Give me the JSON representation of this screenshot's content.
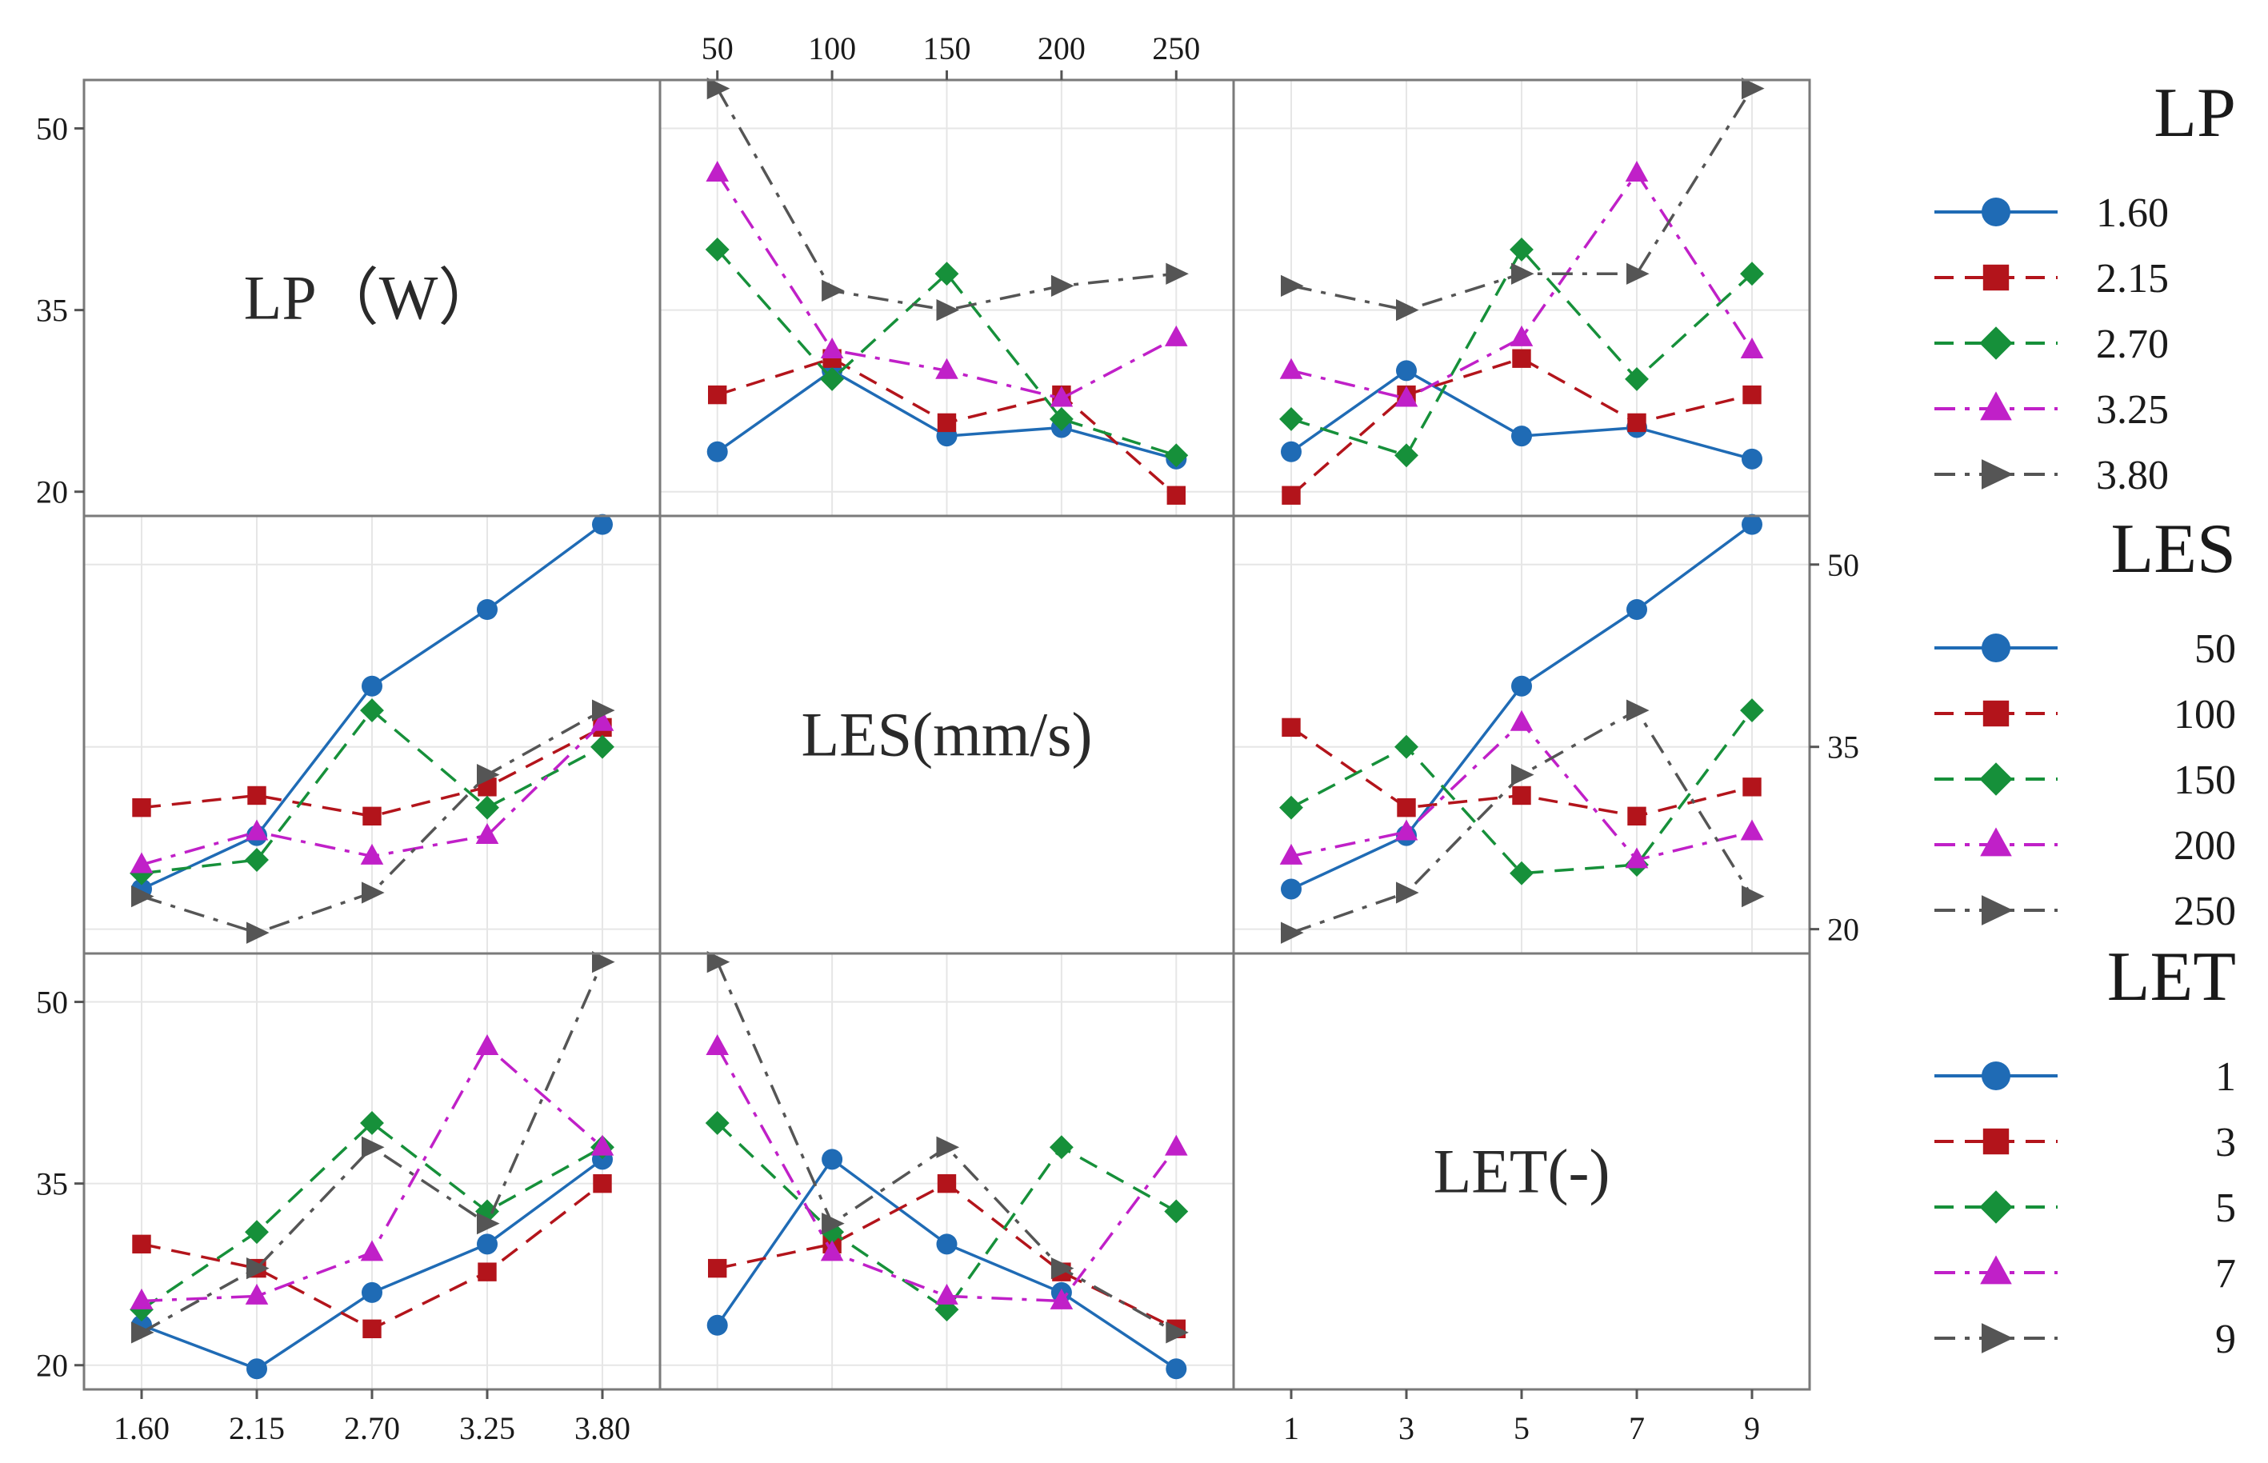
{
  "chart_data": {
    "type": "line",
    "title": "",
    "diagonal_labels": [
      "LP（W）",
      "LES(mm/s)",
      "LET(-)"
    ],
    "factors": {
      "LP": [
        "1.60",
        "2.15",
        "2.70",
        "3.25",
        "3.80"
      ],
      "LES": [
        "50",
        "100",
        "150",
        "200",
        "250"
      ],
      "LET": [
        "1",
        "3",
        "5",
        "7",
        "9"
      ]
    },
    "ylim": [
      18,
      54
    ],
    "yticks": [
      "20",
      "35",
      "50"
    ],
    "top_axis_ticks": [
      "50",
      "100",
      "150",
      "200",
      "250"
    ],
    "bottom_axis_ticks_left": [
      "1.60",
      "2.15",
      "2.70",
      "3.25",
      "3.80"
    ],
    "bottom_axis_ticks_right": [
      "1",
      "3",
      "5",
      "7",
      "9"
    ],
    "right_axis_ticks": [
      "20",
      "35",
      "50"
    ],
    "series_style": [
      {
        "color": "#1f6bb5",
        "marker": "circle",
        "dash": "solid"
      },
      {
        "color": "#b3141b",
        "marker": "square",
        "dash": "dashed"
      },
      {
        "color": "#16903a",
        "marker": "diamond",
        "dash": "dashed"
      },
      {
        "color": "#c020c8",
        "marker": "triangle",
        "dash": "dashdot"
      },
      {
        "color": "#555555",
        "marker": "arrow",
        "dash": "dashdot"
      }
    ],
    "panels": [
      {
        "id": "LP-by-LES",
        "x_factor": "LES",
        "trace_factor": "LP",
        "series": [
          {
            "name": "1.60",
            "values": [
              23.3,
              30.0,
              24.6,
              25.3,
              22.7
            ]
          },
          {
            "name": "2.15",
            "values": [
              28.0,
              31.0,
              25.7,
              28.0,
              19.7
            ]
          },
          {
            "name": "2.70",
            "values": [
              40.0,
              29.3,
              38.0,
              26.0,
              23.0
            ]
          },
          {
            "name": "3.25",
            "values": [
              46.3,
              31.7,
              30.0,
              27.7,
              32.7
            ]
          },
          {
            "name": "3.80",
            "values": [
              53.3,
              36.6,
              35.0,
              37.0,
              38.0
            ]
          }
        ]
      },
      {
        "id": "LP-by-LET",
        "x_factor": "LET",
        "trace_factor": "LP",
        "series": [
          {
            "name": "1.60",
            "values": [
              23.3,
              30.0,
              24.6,
              25.3,
              22.7
            ]
          },
          {
            "name": "2.15",
            "values": [
              19.7,
              28.0,
              31.0,
              25.7,
              28.0
            ]
          },
          {
            "name": "2.70",
            "values": [
              26.0,
              23.0,
              40.0,
              29.3,
              38.0
            ]
          },
          {
            "name": "3.25",
            "values": [
              30.0,
              27.7,
              32.7,
              46.3,
              31.7
            ]
          },
          {
            "name": "3.80",
            "values": [
              37.0,
              35.0,
              38.0,
              38.0,
              53.3
            ]
          }
        ]
      },
      {
        "id": "LES-by-LP",
        "x_factor": "LP",
        "trace_factor": "LES",
        "series": [
          {
            "name": "50",
            "values": [
              23.3,
              27.7,
              40.0,
              46.3,
              53.3
            ]
          },
          {
            "name": "100",
            "values": [
              30.0,
              31.0,
              29.3,
              31.7,
              36.6
            ]
          },
          {
            "name": "150",
            "values": [
              24.6,
              25.7,
              38.0,
              30.0,
              35.0
            ]
          },
          {
            "name": "200",
            "values": [
              25.3,
              28.0,
              26.0,
              27.7,
              37.0
            ]
          },
          {
            "name": "250",
            "values": [
              22.7,
              19.7,
              23.0,
              32.7,
              38.0
            ]
          }
        ]
      },
      {
        "id": "LES-by-LET",
        "x_factor": "LET",
        "trace_factor": "LES",
        "series": [
          {
            "name": "50",
            "values": [
              23.3,
              27.7,
              40.0,
              46.3,
              53.3
            ]
          },
          {
            "name": "100",
            "values": [
              36.6,
              30.0,
              31.0,
              29.3,
              31.7
            ]
          },
          {
            "name": "150",
            "values": [
              30.0,
              35.0,
              24.6,
              25.3,
              38.0
            ]
          },
          {
            "name": "200",
            "values": [
              26.0,
              28.0,
              37.0,
              25.7,
              28.0
            ]
          },
          {
            "name": "250",
            "values": [
              19.7,
              23.0,
              32.7,
              38.0,
              22.7
            ]
          }
        ]
      },
      {
        "id": "LET-by-LP",
        "x_factor": "LP",
        "trace_factor": "LET",
        "series": [
          {
            "name": "1",
            "values": [
              23.3,
              19.7,
              26.0,
              30.0,
              37.0
            ]
          },
          {
            "name": "3",
            "values": [
              30.0,
              28.0,
              23.0,
              27.7,
              35.0
            ]
          },
          {
            "name": "5",
            "values": [
              24.6,
              31.0,
              40.0,
              32.7,
              38.0
            ]
          },
          {
            "name": "7",
            "values": [
              25.3,
              25.7,
              29.3,
              46.3,
              38.0
            ]
          },
          {
            "name": "9",
            "values": [
              22.7,
              28.0,
              38.0,
              31.7,
              53.3
            ]
          }
        ]
      },
      {
        "id": "LET-by-LES",
        "x_factor": "LES",
        "trace_factor": "LET",
        "series": [
          {
            "name": "1",
            "values": [
              23.3,
              37.0,
              30.0,
              26.0,
              19.7
            ]
          },
          {
            "name": "3",
            "values": [
              28.0,
              30.0,
              35.0,
              27.7,
              23.0
            ]
          },
          {
            "name": "5",
            "values": [
              40.0,
              31.0,
              24.6,
              38.0,
              32.7
            ]
          },
          {
            "name": "7",
            "values": [
              46.3,
              29.3,
              25.7,
              25.3,
              38.0
            ]
          },
          {
            "name": "9",
            "values": [
              53.3,
              31.7,
              38.0,
              28.0,
              22.7
            ]
          }
        ]
      }
    ],
    "legends": [
      {
        "title": "LP",
        "entries": [
          "1.60",
          "2.15",
          "2.70",
          "3.25",
          "3.80"
        ]
      },
      {
        "title": "LES",
        "entries": [
          "50",
          "100",
          "150",
          "200",
          "250"
        ]
      },
      {
        "title": "LET",
        "entries": [
          "1",
          "3",
          "5",
          "7",
          "9"
        ]
      }
    ]
  }
}
